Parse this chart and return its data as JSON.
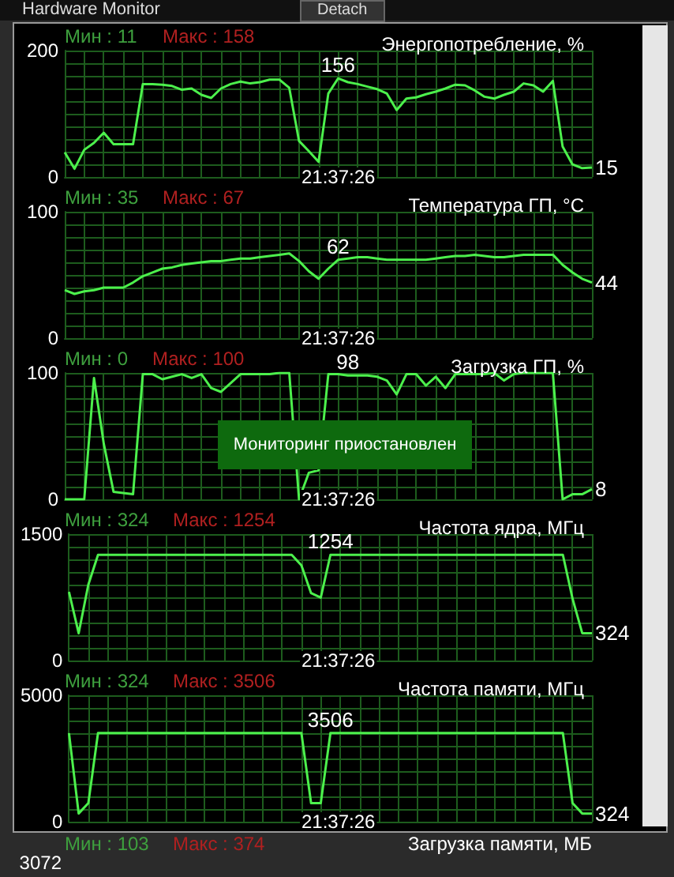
{
  "chart_data": [
    {
      "type": "line",
      "title": "Энергопотребление, %",
      "annotations": [
        "Мин : 11",
        "Макс : 158",
        "21:37:26",
        "Hardware Monitor",
        "Detach"
      ],
      "categories": [
        null,
        null,
        null,
        null,
        null,
        null,
        null,
        null,
        null,
        null,
        null,
        null,
        null,
        null,
        null,
        null,
        null,
        null,
        null,
        null,
        null,
        null,
        null,
        null,
        null,
        null,
        null,
        null,
        null,
        null,
        null,
        null,
        null,
        null,
        null,
        null,
        null,
        null,
        null,
        null,
        null,
        null,
        null,
        null,
        null,
        null,
        null,
        null,
        null,
        null,
        null,
        null,
        null,
        null,
        null
      ],
      "series": [
        {
          "color": "#4cf04c",
          "values": [
            39,
            13,
            43,
            54,
            70,
            52,
            52,
            52,
            147,
            147,
            146,
            144,
            138,
            140,
            130,
            125,
            140,
            147,
            151,
            148,
            150,
            154,
            154,
            141,
            57,
            41,
            24,
            132,
            156,
            150,
            147,
            143,
            139,
            132,
            106,
            124,
            126,
            131,
            135,
            140,
            146,
            145,
            137,
            127,
            124,
            130,
            135,
            148,
            145,
            135,
            152,
            48,
            20,
            14,
            15
          ],
          "value_labels": [
            null,
            null,
            null,
            null,
            null,
            null,
            null,
            null,
            null,
            null,
            null,
            null,
            null,
            null,
            null,
            null,
            null,
            null,
            null,
            null,
            null,
            null,
            null,
            null,
            null,
            null,
            null,
            null,
            "156",
            null,
            null,
            null,
            null,
            null,
            null,
            null,
            null,
            null,
            null,
            null,
            null,
            null,
            null,
            null,
            null,
            null,
            null,
            null,
            null,
            null,
            null,
            null,
            null,
            null,
            "15"
          ]
        }
      ],
      "ylim": [
        0,
        200
      ],
      "yticks": [
        0,
        {
          "value": 20,
          "label": null
        },
        {
          "value": 40,
          "label": null
        },
        {
          "value": 60,
          "label": null
        },
        {
          "value": 80,
          "label": null
        },
        {
          "value": 100,
          "label": null
        },
        {
          "value": 120,
          "label": null
        },
        {
          "value": 140,
          "label": null
        },
        {
          "value": 160,
          "label": null
        },
        {
          "value": 180,
          "label": null
        },
        200
      ],
      "grid": true
    },
    {
      "type": "line",
      "title": "Температура ГП, °C",
      "annotations": [
        "Мин : 35",
        "Макс : 67",
        "21:37:26"
      ],
      "categories": [
        null,
        null,
        null,
        null,
        null,
        null,
        null,
        null,
        null,
        null,
        null,
        null,
        null,
        null,
        null,
        null,
        null,
        null,
        null,
        null,
        null,
        null,
        null,
        null,
        null,
        null,
        null,
        null,
        null,
        null,
        null,
        null,
        null,
        null,
        null,
        null,
        null,
        null,
        null,
        null,
        null,
        null,
        null,
        null,
        null,
        null,
        null,
        null,
        null,
        null,
        null,
        null,
        null,
        null,
        null
      ],
      "series": [
        {
          "color": "#4cf04c",
          "values": [
            38,
            35,
            37,
            38,
            40,
            40,
            40,
            44,
            49,
            52,
            55,
            56,
            58,
            59,
            60,
            61,
            61,
            62,
            63,
            63,
            64,
            65,
            66,
            67,
            61,
            53,
            47,
            55,
            62,
            63,
            64,
            64,
            63,
            62,
            62,
            62,
            62,
            62,
            63,
            64,
            65,
            65,
            66,
            65,
            64,
            64,
            65,
            66,
            66,
            66,
            66,
            58,
            52,
            47,
            44
          ],
          "value_labels": [
            null,
            null,
            null,
            null,
            null,
            null,
            null,
            null,
            null,
            null,
            null,
            null,
            null,
            null,
            null,
            null,
            null,
            null,
            null,
            null,
            null,
            null,
            null,
            null,
            null,
            null,
            null,
            null,
            "62",
            null,
            null,
            null,
            null,
            null,
            null,
            null,
            null,
            null,
            null,
            null,
            null,
            null,
            null,
            null,
            null,
            null,
            null,
            null,
            null,
            null,
            null,
            null,
            null,
            null,
            "44"
          ]
        }
      ],
      "ylim": [
        0,
        100
      ],
      "yticks": [
        0,
        {
          "value": 10,
          "label": null
        },
        {
          "value": 20,
          "label": null
        },
        {
          "value": 30,
          "label": null
        },
        {
          "value": 40,
          "label": null
        },
        {
          "value": 50,
          "label": null
        },
        {
          "value": 60,
          "label": null
        },
        {
          "value": 70,
          "label": null
        },
        {
          "value": 80,
          "label": null
        },
        {
          "value": 90,
          "label": null
        },
        100
      ],
      "grid": true
    },
    {
      "type": "line",
      "title": "Загрузка ГП, %",
      "annotations": [
        "Мин : 0",
        "Макс : 100",
        "21:37:26",
        "Мониторинг приостановлен"
      ],
      "categories": [
        null,
        null,
        null,
        null,
        null,
        null,
        null,
        null,
        null,
        null,
        null,
        null,
        null,
        null,
        null,
        null,
        null,
        null,
        null,
        null,
        null,
        null,
        null,
        null,
        null,
        null,
        null,
        null,
        null,
        null,
        null,
        null,
        null,
        null,
        null,
        null,
        null,
        null,
        null,
        null,
        null,
        null,
        null,
        null,
        null,
        null,
        null,
        null,
        null,
        null,
        null,
        null,
        null,
        null,
        null
      ],
      "series": [
        {
          "color": "#4cf04c",
          "values": [
            0,
            0,
            0,
            96,
            44,
            6,
            5,
            4,
            99,
            99,
            95,
            97,
            99,
            96,
            99,
            88,
            85,
            92,
            99,
            99,
            99,
            99,
            100,
            100,
            0,
            21,
            23,
            99,
            99,
            98,
            98,
            98,
            97,
            94,
            83,
            99,
            99,
            90,
            97,
            88,
            99,
            99,
            99,
            99,
            100,
            94,
            99,
            100,
            100,
            100,
            100,
            0,
            4,
            4,
            8
          ],
          "value_labels": [
            null,
            null,
            null,
            null,
            null,
            null,
            null,
            null,
            null,
            null,
            null,
            null,
            null,
            null,
            null,
            null,
            null,
            null,
            null,
            null,
            null,
            null,
            null,
            null,
            null,
            null,
            null,
            null,
            null,
            "98",
            null,
            null,
            null,
            null,
            null,
            null,
            null,
            null,
            null,
            null,
            null,
            null,
            null,
            null,
            null,
            null,
            null,
            null,
            null,
            null,
            null,
            null,
            null,
            null,
            "8"
          ]
        }
      ],
      "ylim": [
        0,
        100
      ],
      "yticks": [
        0,
        {
          "value": 10,
          "label": null
        },
        {
          "value": 20,
          "label": null
        },
        {
          "value": 30,
          "label": null
        },
        {
          "value": 40,
          "label": null
        },
        {
          "value": 50,
          "label": null
        },
        {
          "value": 60,
          "label": null
        },
        {
          "value": 70,
          "label": null
        },
        {
          "value": 80,
          "label": null
        },
        {
          "value": 90,
          "label": null
        },
        100
      ],
      "grid": true
    },
    {
      "type": "line",
      "title": "Частота ядра, МГц",
      "annotations": [
        "Мин : 324",
        "Макс : 1254",
        "21:37:26"
      ],
      "categories": [
        null,
        null,
        null,
        null,
        null,
        null,
        null,
        null,
        null,
        null,
        null,
        null,
        null,
        null,
        null,
        null,
        null,
        null,
        null,
        null,
        null,
        null,
        null,
        null,
        null,
        null,
        null,
        null,
        null,
        null,
        null,
        null,
        null,
        null,
        null,
        null,
        null,
        null,
        null,
        null,
        null,
        null,
        null,
        null,
        null,
        null,
        null,
        null,
        null,
        null,
        null,
        null,
        null,
        null,
        null
      ],
      "series": [
        {
          "color": "#4cf04c",
          "values": [
            815,
            324,
            900,
            1254,
            1254,
            1254,
            1254,
            1254,
            1254,
            1254,
            1254,
            1254,
            1254,
            1254,
            1254,
            1254,
            1254,
            1254,
            1254,
            1254,
            1254,
            1254,
            1254,
            1254,
            1130,
            800,
            746,
            1254,
            1254,
            1254,
            1254,
            1254,
            1254,
            1254,
            1254,
            1254,
            1254,
            1254,
            1254,
            1254,
            1254,
            1254,
            1254,
            1254,
            1254,
            1254,
            1254,
            1254,
            1254,
            1254,
            1254,
            1254,
            734,
            324,
            324
          ],
          "value_labels": [
            null,
            null,
            null,
            null,
            null,
            null,
            null,
            null,
            null,
            null,
            null,
            null,
            null,
            null,
            null,
            null,
            null,
            null,
            null,
            null,
            null,
            null,
            null,
            null,
            null,
            null,
            null,
            "1254",
            null,
            null,
            null,
            null,
            null,
            null,
            null,
            null,
            null,
            null,
            null,
            null,
            null,
            null,
            null,
            null,
            null,
            null,
            null,
            null,
            null,
            null,
            null,
            null,
            null,
            null,
            "324"
          ]
        }
      ],
      "ylim": [
        0,
        1500
      ],
      "yticks": [
        0,
        {
          "value": 150,
          "label": null
        },
        {
          "value": 300,
          "label": null
        },
        {
          "value": 450,
          "label": null
        },
        {
          "value": 600,
          "label": null
        },
        {
          "value": 750,
          "label": null
        },
        {
          "value": 900,
          "label": null
        },
        {
          "value": 1050,
          "label": null
        },
        {
          "value": 1200,
          "label": null
        },
        {
          "value": 1350,
          "label": null
        },
        1500
      ],
      "grid": true
    },
    {
      "type": "line",
      "title": "Частота памяти, МГц",
      "annotations": [
        "Мин : 324",
        "Макс : 3506",
        "21:37:26"
      ],
      "categories": [
        null,
        null,
        null,
        null,
        null,
        null,
        null,
        null,
        null,
        null,
        null,
        null,
        null,
        null,
        null,
        null,
        null,
        null,
        null,
        null,
        null,
        null,
        null,
        null,
        null,
        null,
        null,
        null,
        null,
        null,
        null,
        null,
        null,
        null,
        null,
        null,
        null,
        null,
        null,
        null,
        null,
        null,
        null,
        null,
        null,
        null,
        null,
        null,
        null,
        null,
        null,
        null,
        null,
        null,
        null
      ],
      "series": [
        {
          "color": "#4cf04c",
          "values": [
            3506,
            324,
            735,
            3506,
            3506,
            3506,
            3506,
            3506,
            3506,
            3506,
            3506,
            3506,
            3506,
            3506,
            3506,
            3506,
            3506,
            3506,
            3506,
            3506,
            3506,
            3506,
            3506,
            3506,
            3506,
            735,
            735,
            3506,
            3506,
            3506,
            3506,
            3506,
            3506,
            3506,
            3506,
            3506,
            3506,
            3506,
            3506,
            3506,
            3506,
            3506,
            3506,
            3506,
            3506,
            3506,
            3506,
            3506,
            3506,
            3506,
            3506,
            3506,
            735,
            324,
            324
          ],
          "value_labels": [
            null,
            null,
            null,
            null,
            null,
            null,
            null,
            null,
            null,
            null,
            null,
            null,
            null,
            null,
            null,
            null,
            null,
            null,
            null,
            null,
            null,
            null,
            null,
            null,
            null,
            null,
            null,
            "3506",
            null,
            null,
            null,
            null,
            null,
            null,
            null,
            null,
            null,
            null,
            null,
            null,
            null,
            null,
            null,
            null,
            null,
            null,
            null,
            null,
            null,
            null,
            null,
            null,
            null,
            null,
            "324"
          ]
        }
      ],
      "ylim": [
        0,
        5000
      ],
      "yticks": [
        0,
        {
          "value": 500,
          "label": null
        },
        {
          "value": 1000,
          "label": null
        },
        {
          "value": 1500,
          "label": null
        },
        {
          "value": 2000,
          "label": null
        },
        {
          "value": 2500,
          "label": null
        },
        {
          "value": 3000,
          "label": null
        },
        {
          "value": 3500,
          "label": null
        },
        {
          "value": 4000,
          "label": null
        },
        {
          "value": 4500,
          "label": null
        },
        5000
      ],
      "grid": true
    },
    {
      "type": "other",
      "title": "Загрузка памяти, МБ",
      "annotations": [
        "Мин : 103",
        "Макс : 374",
        "3072"
      ]
    }
  ]
}
